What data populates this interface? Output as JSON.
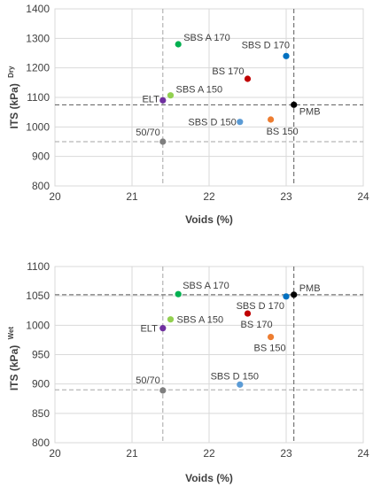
{
  "chart_data": [
    {
      "type": "scatter",
      "title": "",
      "xlabel": "Voids (%)",
      "ylabel": "ITS (kPa)",
      "ylabel_sup": "Dry",
      "xlim": [
        20,
        24
      ],
      "ylim": [
        800,
        1400
      ],
      "xticks": [
        20,
        21,
        22,
        23,
        24
      ],
      "yticks": [
        800,
        900,
        1000,
        1100,
        1200,
        1300,
        1400
      ],
      "grid": true,
      "reference_lines": [
        {
          "orientation": "vertical",
          "value": 21.4,
          "color": "#a6a6a6"
        },
        {
          "orientation": "vertical",
          "value": 23.1,
          "color": "#595959"
        },
        {
          "orientation": "horizontal",
          "value": 950,
          "color": "#a6a6a6"
        },
        {
          "orientation": "horizontal",
          "value": 1075,
          "color": "#595959"
        }
      ],
      "points": [
        {
          "label": "SBS A 170",
          "x": 21.6,
          "y": 1280,
          "color": "#00b050"
        },
        {
          "label": "SBS D 170",
          "x": 23.0,
          "y": 1240,
          "color": "#0070c0"
        },
        {
          "label": "BS 170",
          "x": 22.5,
          "y": 1163,
          "color": "#c00000"
        },
        {
          "label": "SBS A 150",
          "x": 21.5,
          "y": 1107,
          "color": "#92d050"
        },
        {
          "label": "ELT",
          "x": 21.4,
          "y": 1090,
          "color": "#7030a0"
        },
        {
          "label": "PMB",
          "x": 23.1,
          "y": 1075,
          "color": "#000000"
        },
        {
          "label": "SBS D 150",
          "x": 22.4,
          "y": 1017,
          "color": "#5b9bd5"
        },
        {
          "label": "BS 150",
          "x": 22.8,
          "y": 1025,
          "color": "#ed7d31"
        },
        {
          "label": "50/70",
          "x": 21.4,
          "y": 950,
          "color": "#7f7f7f"
        }
      ]
    },
    {
      "type": "scatter",
      "title": "",
      "xlabel": "Voids (%)",
      "ylabel": "ITS (kPa)",
      "ylabel_sup": "Wet",
      "xlim": [
        20,
        24
      ],
      "ylim": [
        800,
        1100
      ],
      "xticks": [
        20,
        21,
        22,
        23,
        24
      ],
      "yticks": [
        800,
        850,
        900,
        950,
        1000,
        1050,
        1100
      ],
      "grid": true,
      "reference_lines": [
        {
          "orientation": "vertical",
          "value": 21.4,
          "color": "#a6a6a6"
        },
        {
          "orientation": "vertical",
          "value": 23.1,
          "color": "#595959"
        },
        {
          "orientation": "horizontal",
          "value": 890,
          "color": "#a6a6a6"
        },
        {
          "orientation": "horizontal",
          "value": 1052,
          "color": "#595959"
        }
      ],
      "points": [
        {
          "label": "SBS A 170",
          "x": 21.6,
          "y": 1053,
          "color": "#00b050"
        },
        {
          "label": "PMB",
          "x": 23.1,
          "y": 1052,
          "color": "#000000"
        },
        {
          "label": "SBS D 170",
          "x": 23.0,
          "y": 1049,
          "color": "#0070c0"
        },
        {
          "label": "BS 170",
          "x": 22.5,
          "y": 1020,
          "color": "#c00000"
        },
        {
          "label": "SBS A 150",
          "x": 21.5,
          "y": 1010,
          "color": "#92d050"
        },
        {
          "label": "ELT",
          "x": 21.4,
          "y": 995,
          "color": "#7030a0"
        },
        {
          "label": "BS 150",
          "x": 22.8,
          "y": 980,
          "color": "#ed7d31"
        },
        {
          "label": "SBS D 150",
          "x": 22.4,
          "y": 899,
          "color": "#5b9bd5"
        },
        {
          "label": "50/70",
          "x": 21.4,
          "y": 889,
          "color": "#7f7f7f"
        }
      ]
    }
  ]
}
